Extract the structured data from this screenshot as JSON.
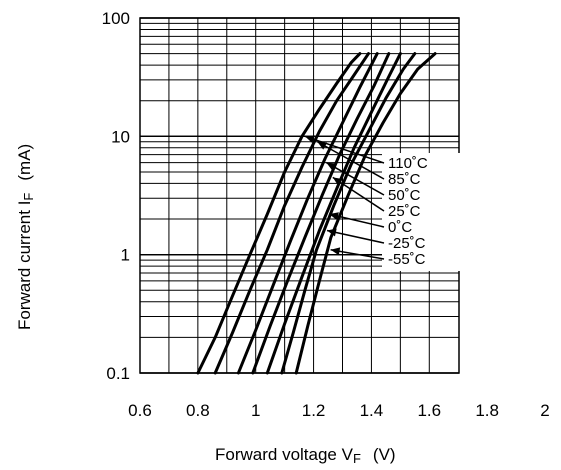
{
  "chart_data": {
    "type": "line",
    "xlabel": "Forward voltage V",
    "xlabel_sub": "F",
    "xlabel_unit": "(V)",
    "ylabel": "Forward current I",
    "ylabel_sub": "F",
    "ylabel_unit": "(mA)",
    "xlim": [
      0.6,
      2.0
    ],
    "ylim": [
      0.1,
      100
    ],
    "y_scale": "log",
    "grid": true,
    "x_ticks": [
      "0.6",
      "0.8",
      "1",
      "1.2",
      "1.4",
      "1.6",
      "1.8",
      "2"
    ],
    "y_ticks": [
      "0.1",
      "1",
      "10",
      "100"
    ],
    "series": [
      {
        "name": "110˚C",
        "x": [
          0.8,
          0.86,
          0.92,
          0.98,
          1.04,
          1.1,
          1.16,
          1.22,
          1.28,
          1.33,
          1.36
        ],
        "values": [
          0.1,
          0.2,
          0.45,
          1.0,
          2.2,
          5.0,
          10,
          17,
          28,
          42,
          50
        ]
      },
      {
        "name": "85˚C",
        "x": [
          0.86,
          0.92,
          0.98,
          1.04,
          1.1,
          1.16,
          1.22,
          1.28,
          1.34,
          1.39
        ],
        "values": [
          0.1,
          0.22,
          0.5,
          1.1,
          2.6,
          5.5,
          11,
          20,
          33,
          50
        ]
      },
      {
        "name": "50˚C",
        "x": [
          0.94,
          1.0,
          1.06,
          1.12,
          1.18,
          1.24,
          1.3,
          1.36,
          1.42
        ],
        "values": [
          0.1,
          0.23,
          0.55,
          1.3,
          3.0,
          6.5,
          13,
          26,
          50
        ]
      },
      {
        "name": "25˚C",
        "x": [
          0.99,
          1.05,
          1.11,
          1.17,
          1.23,
          1.29,
          1.35,
          1.41,
          1.46
        ],
        "values": [
          0.1,
          0.25,
          0.6,
          1.4,
          3.2,
          7.0,
          14,
          27,
          50
        ]
      },
      {
        "name": "0˚C",
        "x": [
          1.04,
          1.1,
          1.16,
          1.22,
          1.28,
          1.34,
          1.4,
          1.46,
          1.5
        ],
        "values": [
          0.1,
          0.26,
          0.65,
          1.6,
          3.6,
          8.0,
          16,
          32,
          50
        ]
      },
      {
        "name": "-25˚C",
        "x": [
          1.09,
          1.13,
          1.17,
          1.21,
          1.27,
          1.33,
          1.39,
          1.45,
          1.51,
          1.55
        ],
        "values": [
          0.1,
          0.22,
          0.5,
          1.1,
          2.6,
          5.8,
          11,
          21,
          37,
          50
        ]
      },
      {
        "name": "-55˚C",
        "x": [
          1.14,
          1.18,
          1.22,
          1.26,
          1.32,
          1.38,
          1.44,
          1.5,
          1.56,
          1.62
        ],
        "values": [
          0.1,
          0.25,
          0.6,
          1.4,
          3.2,
          7.0,
          13,
          23,
          37,
          50
        ]
      }
    ],
    "legend": {
      "placement": "right",
      "entries": [
        "110˚C",
        "85˚C",
        "50˚C",
        "25˚C",
        "0˚C",
        "-25˚C",
        "-55˚C"
      ]
    }
  }
}
